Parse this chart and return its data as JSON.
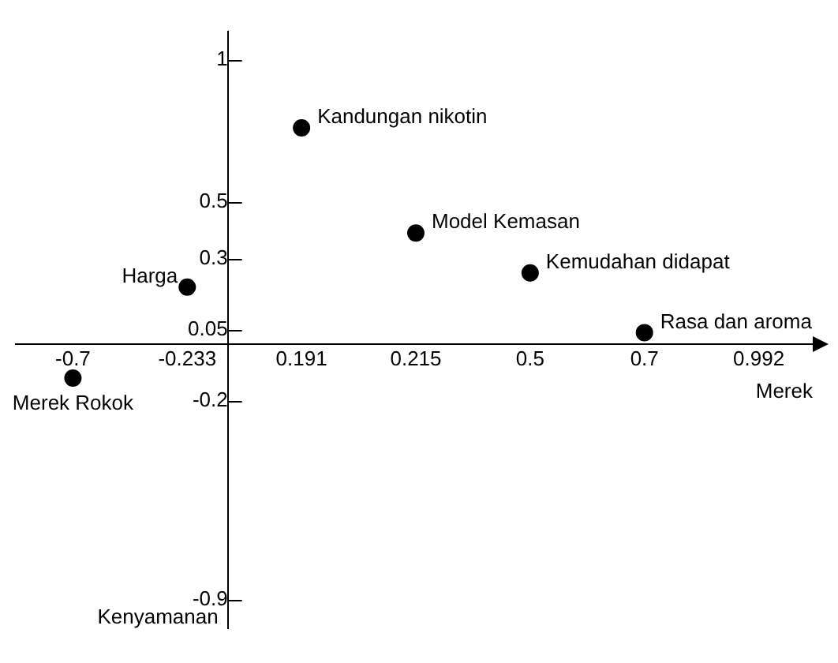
{
  "chart_data": {
    "type": "scatter",
    "xlabel": "Merek",
    "ylabel": "Kenyamanan",
    "categories": [
      "-0.7",
      "-0.233",
      "0.191",
      "0.215",
      "0.5",
      "0.7",
      "0.992"
    ],
    "ylim": [
      -1.0,
      1.1
    ],
    "yticks": [
      -0.9,
      -0.2,
      0.05,
      0.3,
      0.5,
      1
    ],
    "grid": false,
    "legend": false,
    "marker": "circle",
    "series": [
      {
        "name": "Kandungan nikotin",
        "color": "#000000",
        "x": [
          "0.191"
        ],
        "values": [
          0.76
        ]
      },
      {
        "name": "Model Kemasan",
        "color": "#000000",
        "x": [
          "0.215"
        ],
        "values": [
          0.39
        ]
      },
      {
        "name": "Kemudahan didapat",
        "color": "#000000",
        "x": [
          "0.5"
        ],
        "values": [
          0.25
        ]
      },
      {
        "name": "Rasa dan aroma",
        "color": "#000000",
        "x": [
          "0.7"
        ],
        "values": [
          0.04
        ]
      },
      {
        "name": "Harga",
        "color": "#000000",
        "x": [
          "-0.233"
        ],
        "values": [
          0.2
        ]
      },
      {
        "name": "Merek Rokok",
        "color": "#000000",
        "x": [
          "-0.7"
        ],
        "values": [
          -0.12
        ]
      }
    ]
  }
}
